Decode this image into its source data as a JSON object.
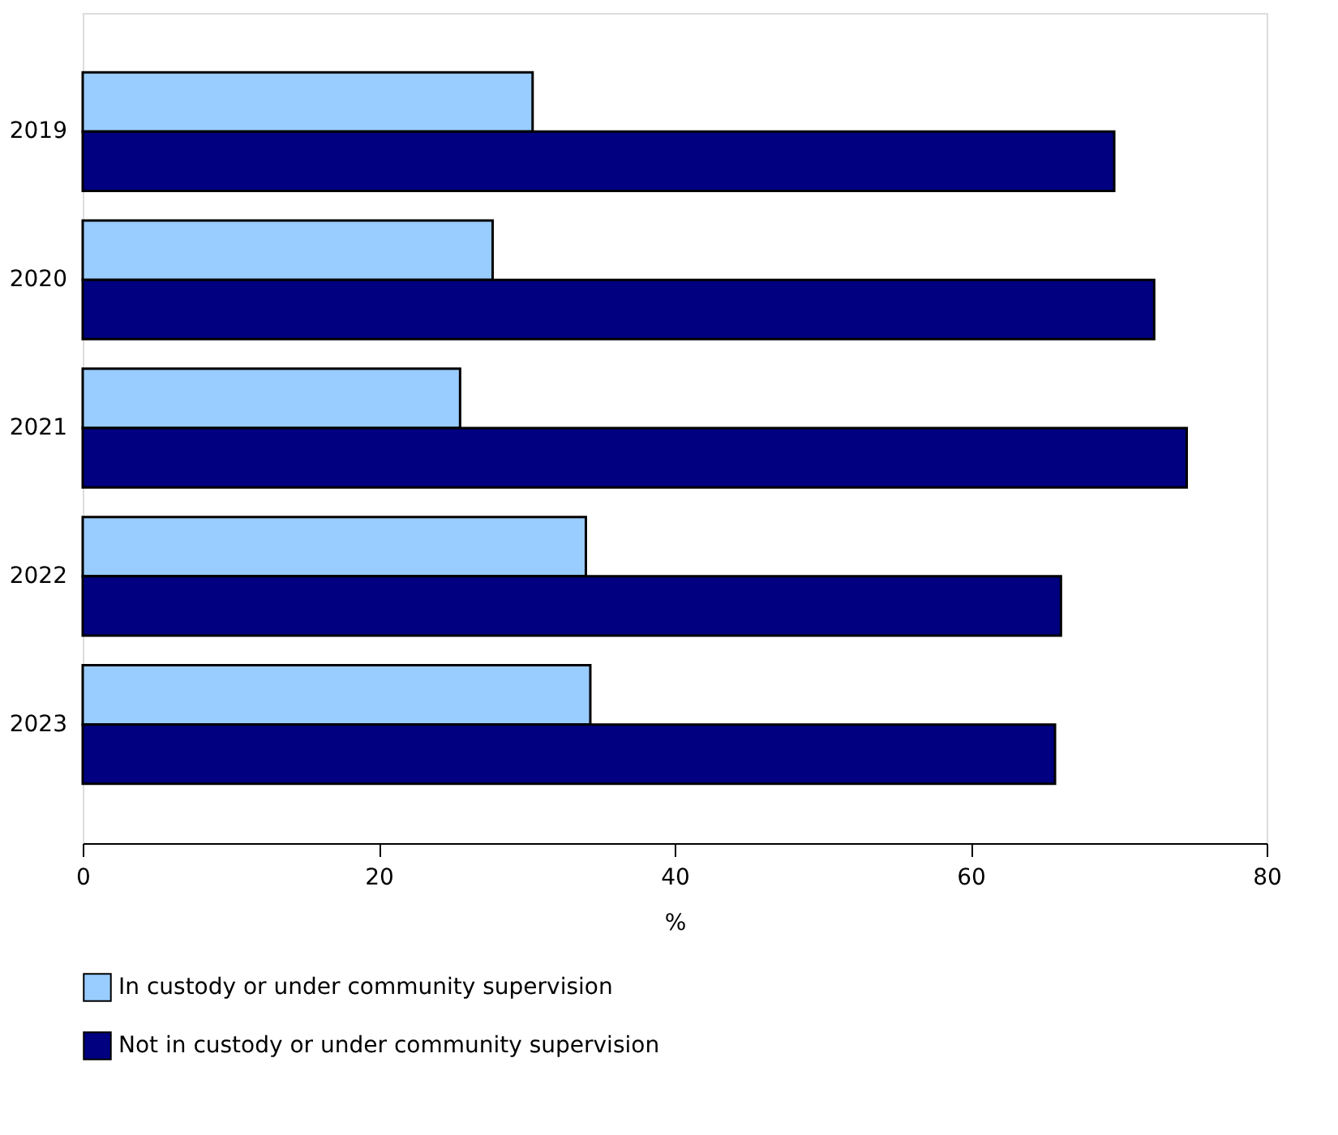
{
  "chart_data": {
    "type": "bar",
    "orientation": "horizontal",
    "xlabel": "%",
    "categories": [
      "2019",
      "2020",
      "2021",
      "2022",
      "2023"
    ],
    "series": [
      {
        "name": "In custody or under community supervision",
        "color": "#99ccff",
        "values": [
          30.4,
          27.7,
          25.5,
          34.0,
          34.3
        ]
      },
      {
        "name": "Not in custody or under community supervision",
        "color": "#000080",
        "values": [
          69.7,
          72.4,
          74.6,
          66.1,
          65.7
        ]
      }
    ],
    "xlim": [
      0,
      80
    ],
    "xticks": [
      0,
      20,
      40,
      60,
      80
    ],
    "grid": false,
    "legend": "bottom"
  }
}
